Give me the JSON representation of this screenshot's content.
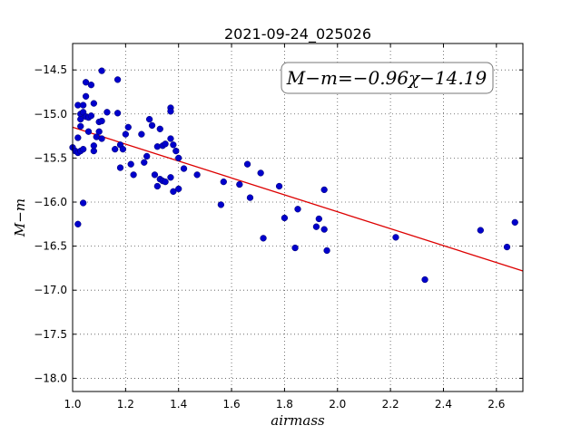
{
  "chart_data": {
    "type": "scatter",
    "title": "2021-09-24_025026",
    "xlabel": "airmass",
    "ylabel": "M−m",
    "annotation": "M−m=−0.96χ−14.19",
    "xlim": [
      1.0,
      2.7
    ],
    "ylim": [
      -18.15,
      -14.2
    ],
    "x_ticks": [
      1.0,
      1.2,
      1.4,
      1.6,
      1.8,
      2.0,
      2.2,
      2.4,
      2.6
    ],
    "x_tick_labels": [
      "1.0",
      "1.2",
      "1.4",
      "1.6",
      "1.8",
      "2.0",
      "2.2",
      "2.4",
      "2.6"
    ],
    "y_ticks": [
      -14.5,
      -15.0,
      -15.5,
      -16.0,
      -16.5,
      -17.0,
      -17.5,
      -18.0
    ],
    "y_tick_labels": [
      "−14.5",
      "−15.0",
      "−15.5",
      "−16.0",
      "−16.5",
      "−17.0",
      "−17.5",
      "−18.0"
    ],
    "grid": true,
    "point_color": "#0000cc",
    "fit_color": "#dd0000",
    "fit": {
      "slope": -0.96,
      "intercept": -14.19
    },
    "points": [
      [
        1.0,
        -15.38
      ],
      [
        1.01,
        -15.42
      ],
      [
        1.02,
        -14.9
      ],
      [
        1.02,
        -15.27
      ],
      [
        1.02,
        -15.44
      ],
      [
        1.02,
        -16.25
      ],
      [
        1.03,
        -15.0
      ],
      [
        1.03,
        -15.06
      ],
      [
        1.03,
        -15.14
      ],
      [
        1.03,
        -15.42
      ],
      [
        1.04,
        -14.9
      ],
      [
        1.04,
        -14.98
      ],
      [
        1.04,
        -15.4
      ],
      [
        1.04,
        -16.01
      ],
      [
        1.05,
        -14.64
      ],
      [
        1.05,
        -14.8
      ],
      [
        1.05,
        -15.03
      ],
      [
        1.06,
        -15.04
      ],
      [
        1.06,
        -15.2
      ],
      [
        1.07,
        -14.67
      ],
      [
        1.07,
        -15.02
      ],
      [
        1.08,
        -15.42
      ],
      [
        1.08,
        -15.36
      ],
      [
        1.08,
        -14.88
      ],
      [
        1.09,
        -15.26
      ],
      [
        1.1,
        -15.2
      ],
      [
        1.1,
        -15.09
      ],
      [
        1.11,
        -14.51
      ],
      [
        1.11,
        -15.08
      ],
      [
        1.11,
        -15.28
      ],
      [
        1.13,
        -14.98
      ],
      [
        1.16,
        -15.4
      ],
      [
        1.17,
        -14.99
      ],
      [
        1.17,
        -14.61
      ],
      [
        1.18,
        -15.35
      ],
      [
        1.18,
        -15.61
      ],
      [
        1.19,
        -15.4
      ],
      [
        1.2,
        -15.23
      ],
      [
        1.21,
        -15.15
      ],
      [
        1.22,
        -15.57
      ],
      [
        1.23,
        -15.69
      ],
      [
        1.26,
        -15.23
      ],
      [
        1.27,
        -15.55
      ],
      [
        1.28,
        -15.48
      ],
      [
        1.29,
        -15.06
      ],
      [
        1.3,
        -15.13
      ],
      [
        1.31,
        -15.69
      ],
      [
        1.32,
        -15.82
      ],
      [
        1.32,
        -15.37
      ],
      [
        1.33,
        -15.74
      ],
      [
        1.33,
        -15.17
      ],
      [
        1.34,
        -15.36
      ],
      [
        1.34,
        -15.76
      ],
      [
        1.35,
        -15.77
      ],
      [
        1.35,
        -15.34
      ],
      [
        1.37,
        -14.93
      ],
      [
        1.37,
        -14.97
      ],
      [
        1.37,
        -15.28
      ],
      [
        1.37,
        -15.72
      ],
      [
        1.38,
        -15.88
      ],
      [
        1.38,
        -15.35
      ],
      [
        1.39,
        -15.42
      ],
      [
        1.4,
        -15.5
      ],
      [
        1.4,
        -15.85
      ],
      [
        1.42,
        -15.62
      ],
      [
        1.47,
        -15.69
      ],
      [
        1.56,
        -16.03
      ],
      [
        1.57,
        -15.77
      ],
      [
        1.63,
        -15.8
      ],
      [
        1.66,
        -15.57
      ],
      [
        1.67,
        -15.95
      ],
      [
        1.71,
        -15.67
      ],
      [
        1.72,
        -16.41
      ],
      [
        1.78,
        -15.82
      ],
      [
        1.8,
        -16.18
      ],
      [
        1.84,
        -16.52
      ],
      [
        1.85,
        -16.08
      ],
      [
        1.92,
        -16.28
      ],
      [
        1.93,
        -16.19
      ],
      [
        1.95,
        -16.31
      ],
      [
        1.95,
        -15.86
      ],
      [
        1.96,
        -16.55
      ],
      [
        2.22,
        -16.4
      ],
      [
        2.33,
        -16.88
      ],
      [
        2.54,
        -16.32
      ],
      [
        2.64,
        -16.51
      ],
      [
        2.67,
        -16.23
      ]
    ]
  }
}
